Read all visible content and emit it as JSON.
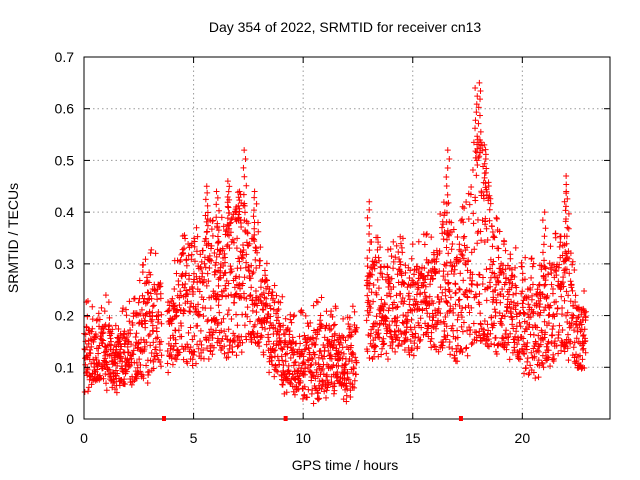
{
  "chart_data": {
    "type": "scatter",
    "title": "Day 354 of 2022, SRMTID for receiver cn13",
    "xlabel": "GPS time / hours",
    "ylabel": "SRMTID / TECUs",
    "xlim": [
      0,
      24.0
    ],
    "ylim": [
      0,
      0.7
    ],
    "x_ticks": [
      0,
      5,
      10,
      15,
      20
    ],
    "x_tick_labels": [
      "0",
      "5",
      "10",
      "15",
      "20"
    ],
    "y_ticks": [
      0,
      0.1,
      0.2,
      0.3,
      0.4,
      0.5,
      0.6,
      0.7
    ],
    "y_tick_labels": [
      "0",
      "0.1",
      "0.2",
      "0.3",
      "0.4",
      "0.5",
      "0.6",
      "0.7"
    ],
    "grid": true,
    "marker": "plus",
    "color": "#ff0000",
    "axis_markers": [
      3.65,
      9.2,
      17.2
    ],
    "envelope": [
      [
        0.0,
        0.08,
        0.18
      ],
      [
        0.5,
        0.08,
        0.17
      ],
      [
        1.0,
        0.08,
        0.18
      ],
      [
        1.5,
        0.08,
        0.16
      ],
      [
        2.0,
        0.07,
        0.16
      ],
      [
        2.5,
        0.09,
        0.22
      ],
      [
        3.0,
        0.1,
        0.28
      ],
      [
        3.5,
        0.12,
        0.25
      ],
      [
        4.0,
        0.11,
        0.22
      ],
      [
        4.5,
        0.14,
        0.32
      ],
      [
        5.0,
        0.13,
        0.3
      ],
      [
        5.5,
        0.14,
        0.34
      ],
      [
        6.0,
        0.15,
        0.32
      ],
      [
        6.5,
        0.14,
        0.36
      ],
      [
        7.0,
        0.15,
        0.4
      ],
      [
        7.5,
        0.17,
        0.35
      ],
      [
        8.0,
        0.15,
        0.32
      ],
      [
        8.5,
        0.11,
        0.24
      ],
      [
        9.0,
        0.08,
        0.18
      ],
      [
        9.5,
        0.07,
        0.16
      ],
      [
        10.0,
        0.06,
        0.15
      ],
      [
        10.5,
        0.06,
        0.17
      ],
      [
        11.0,
        0.07,
        0.18
      ],
      [
        11.5,
        0.08,
        0.16
      ],
      [
        12.0,
        0.06,
        0.15
      ],
      [
        12.5,
        0.08,
        0.18
      ],
      [
        13.0,
        0.14,
        0.28
      ],
      [
        13.5,
        0.15,
        0.3
      ],
      [
        14.0,
        0.14,
        0.28
      ],
      [
        14.5,
        0.16,
        0.3
      ],
      [
        15.0,
        0.15,
        0.28
      ],
      [
        15.5,
        0.17,
        0.3
      ],
      [
        16.0,
        0.16,
        0.3
      ],
      [
        16.5,
        0.16,
        0.38
      ],
      [
        17.0,
        0.14,
        0.3
      ],
      [
        17.5,
        0.15,
        0.42
      ],
      [
        18.0,
        0.18,
        0.52
      ],
      [
        18.5,
        0.16,
        0.4
      ],
      [
        19.0,
        0.15,
        0.3
      ],
      [
        19.5,
        0.14,
        0.28
      ],
      [
        20.0,
        0.12,
        0.26
      ],
      [
        20.5,
        0.1,
        0.25
      ],
      [
        21.0,
        0.12,
        0.26
      ],
      [
        21.5,
        0.14,
        0.3
      ],
      [
        22.0,
        0.15,
        0.32
      ],
      [
        22.5,
        0.11,
        0.22
      ],
      [
        22.9,
        0.1,
        0.2
      ]
    ],
    "spikes": [
      [
        5.6,
        0.45
      ],
      [
        6.1,
        0.44
      ],
      [
        6.6,
        0.46
      ],
      [
        7.1,
        0.44
      ],
      [
        7.35,
        0.52
      ],
      [
        7.8,
        0.44
      ],
      [
        13.0,
        0.42
      ],
      [
        16.6,
        0.52
      ],
      [
        17.9,
        0.64
      ],
      [
        18.05,
        0.65
      ],
      [
        18.3,
        0.53
      ],
      [
        22.0,
        0.47
      ],
      [
        22.05,
        0.44
      ],
      [
        21.0,
        0.4
      ]
    ]
  }
}
